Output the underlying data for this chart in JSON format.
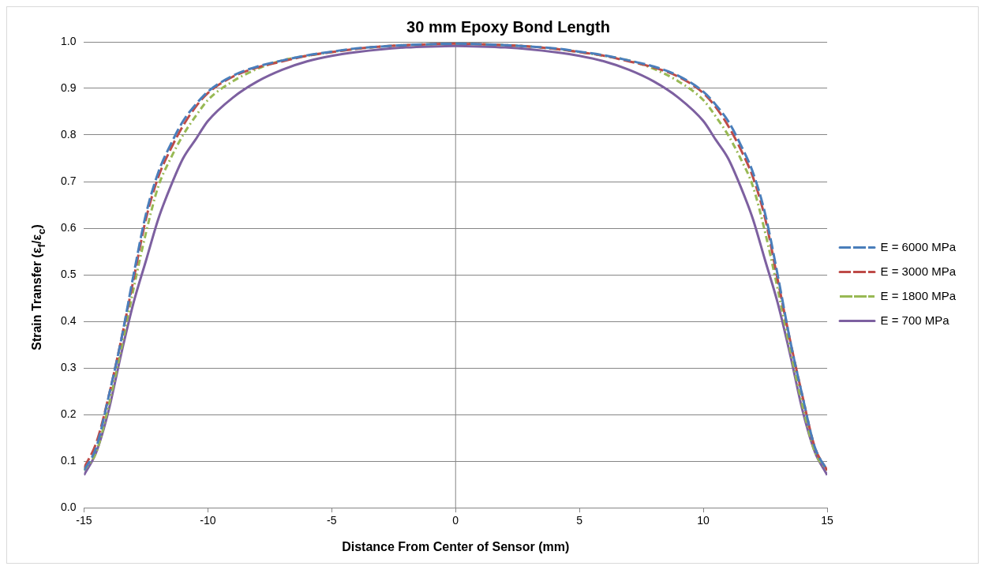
{
  "chart_data": {
    "type": "line",
    "title": "30 mm Epoxy Bond Length",
    "xlabel": "Distance From Center of Sensor (mm)",
    "ylabel": "Strain Transfer (ε$_{f}$/ε$_{c}$)",
    "x": [
      -15,
      -14.5,
      -14,
      -13.5,
      -13,
      -12.5,
      -12,
      -11.5,
      -11,
      -10.5,
      -10,
      -9,
      -8,
      -7,
      -6,
      -5,
      -4,
      -3,
      -2,
      -1,
      0,
      1,
      2,
      3,
      4,
      5,
      6,
      7,
      8,
      9,
      10,
      10.5,
      11,
      11.5,
      12,
      12.5,
      13,
      13.5,
      14,
      14.5,
      15
    ],
    "series": [
      {
        "name": "E = 6000 MPa",
        "color": "#4a7ebb",
        "line_style": "dashed",
        "values": [
          0.08,
          0.13,
          0.24,
          0.36,
          0.5,
          0.63,
          0.72,
          0.78,
          0.83,
          0.865,
          0.893,
          0.927,
          0.947,
          0.96,
          0.971,
          0.979,
          0.986,
          0.99,
          0.993,
          0.995,
          0.996,
          0.995,
          0.993,
          0.99,
          0.986,
          0.979,
          0.971,
          0.96,
          0.947,
          0.927,
          0.893,
          0.865,
          0.83,
          0.78,
          0.72,
          0.63,
          0.5,
          0.36,
          0.24,
          0.13,
          0.08
        ]
      },
      {
        "name": "E = 3000 MPa",
        "color": "#be4b48",
        "line_style": "dashed",
        "values": [
          0.085,
          0.14,
          0.24,
          0.36,
          0.49,
          0.62,
          0.71,
          0.77,
          0.82,
          0.86,
          0.89,
          0.925,
          0.945,
          0.958,
          0.97,
          0.978,
          0.985,
          0.99,
          0.993,
          0.995,
          0.996,
          0.995,
          0.993,
          0.99,
          0.985,
          0.978,
          0.97,
          0.958,
          0.945,
          0.925,
          0.89,
          0.86,
          0.82,
          0.77,
          0.71,
          0.62,
          0.49,
          0.36,
          0.24,
          0.13,
          0.08
        ]
      },
      {
        "name": "E = 1800 MPa",
        "color": "#98b954",
        "line_style": "dotted",
        "values": [
          0.08,
          0.12,
          0.22,
          0.34,
          0.47,
          0.59,
          0.69,
          0.75,
          0.8,
          0.84,
          0.875,
          0.915,
          0.942,
          0.96,
          0.97,
          0.978,
          0.985,
          0.99,
          0.993,
          0.995,
          0.996,
          0.995,
          0.993,
          0.99,
          0.985,
          0.978,
          0.97,
          0.96,
          0.942,
          0.915,
          0.875,
          0.84,
          0.8,
          0.75,
          0.69,
          0.59,
          0.47,
          0.34,
          0.22,
          0.12,
          0.08
        ]
      },
      {
        "name": "E = 700 MPa",
        "color": "#7d60a0",
        "line_style": "solid",
        "values": [
          0.07,
          0.12,
          0.21,
          0.33,
          0.44,
          0.53,
          0.62,
          0.69,
          0.75,
          0.79,
          0.83,
          0.88,
          0.915,
          0.94,
          0.958,
          0.97,
          0.978,
          0.984,
          0.988,
          0.99,
          0.991,
          0.99,
          0.988,
          0.984,
          0.978,
          0.97,
          0.958,
          0.94,
          0.915,
          0.88,
          0.83,
          0.79,
          0.75,
          0.69,
          0.62,
          0.53,
          0.44,
          0.33,
          0.21,
          0.12,
          0.07
        ]
      }
    ],
    "xlim": [
      -15,
      15
    ],
    "xticks": [
      -15,
      -10,
      -5,
      0,
      5,
      10,
      15
    ],
    "ylim": [
      0,
      1
    ],
    "yticks": [
      {
        "value": 0,
        "label": "0.0"
      },
      0.1,
      0.2,
      0.3,
      0.4,
      0.5,
      0.6,
      0.7,
      0.8,
      0.9,
      {
        "value": 1,
        "label": "1.0"
      }
    ],
    "ref_lines": [
      {
        "axis": "x",
        "value": 0,
        "color": "#868686"
      }
    ],
    "grid": "y",
    "legend": "right",
    "marker": "none"
  }
}
